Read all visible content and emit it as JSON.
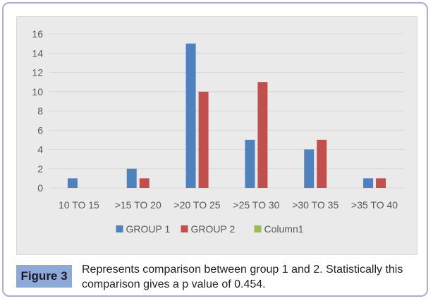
{
  "chart_data": {
    "type": "bar",
    "categories": [
      "10 TO 15",
      ">15 TO 20",
      ">20 TO 25",
      ">25 TO 30",
      ">30 TO 35",
      ">35 TO 40"
    ],
    "series": [
      {
        "name": "GROUP 1",
        "values": [
          1,
          2,
          15,
          5,
          4,
          1
        ],
        "color": "#4f81bd"
      },
      {
        "name": "GROUP 2",
        "values": [
          0,
          1,
          10,
          11,
          5,
          1
        ],
        "color": "#c0504d"
      },
      {
        "name": "Column1",
        "values": [
          0,
          0,
          0,
          0,
          0,
          0
        ],
        "color": "#9bbb59"
      }
    ],
    "ylim": [
      0,
      16
    ],
    "yticks": [
      "0",
      "2",
      "4",
      "6",
      "8",
      "10",
      "12",
      "14",
      "16"
    ],
    "grid": true,
    "legend": "bottom"
  },
  "caption": {
    "label": "Figure 3",
    "text": "Represents comparison between group 1 and 2. Statistically this comparison gives a p value of 0.454."
  },
  "colors": {
    "frame_border": "#b5a8cf",
    "label_bg": "#8ea9d8",
    "plot_bg": "#eaeaea",
    "gridline": "#d9d9d9"
  }
}
